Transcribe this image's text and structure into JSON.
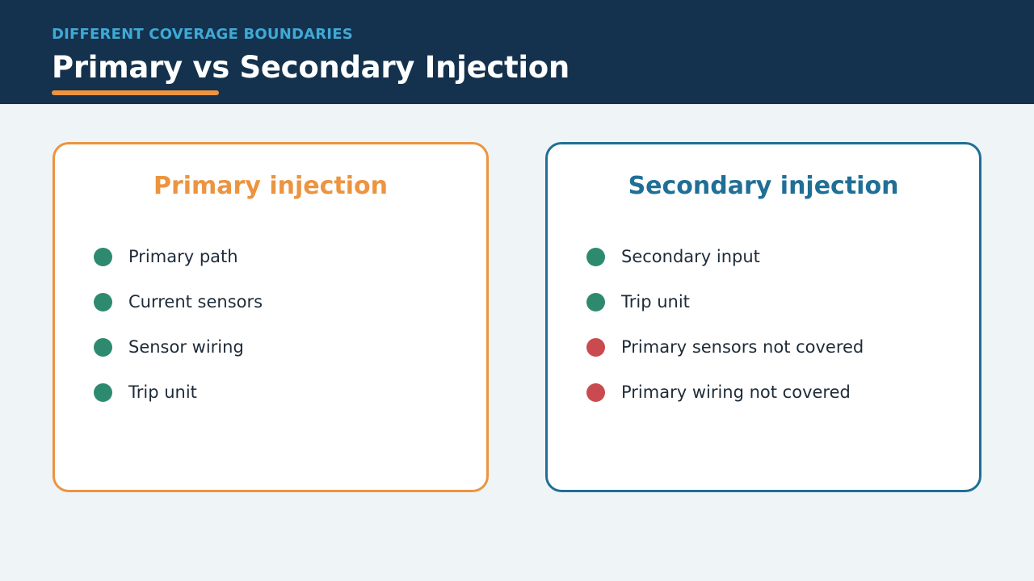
{
  "header": {
    "eyebrow": "DIFFERENT COVERAGE BOUNDARIES",
    "title": "Primary vs Secondary Injection"
  },
  "colors": {
    "header_bg": "#14324d",
    "eyebrow": "#3fa9d6",
    "accent_orange": "#ec9440",
    "accent_blue": "#1f6f96",
    "covered_green": "#2e8a6e",
    "not_covered_red": "#c94b4f"
  },
  "cards": [
    {
      "title": "Primary injection",
      "items": [
        {
          "label": "Primary path",
          "status": "covered"
        },
        {
          "label": "Current sensors",
          "status": "covered"
        },
        {
          "label": "Sensor wiring",
          "status": "covered"
        },
        {
          "label": "Trip unit",
          "status": "covered"
        }
      ]
    },
    {
      "title": "Secondary injection",
      "items": [
        {
          "label": "Secondary input",
          "status": "covered"
        },
        {
          "label": "Trip unit",
          "status": "covered"
        },
        {
          "label": "Primary sensors not covered",
          "status": "not-covered"
        },
        {
          "label": "Primary wiring not covered",
          "status": "not-covered"
        }
      ]
    }
  ]
}
